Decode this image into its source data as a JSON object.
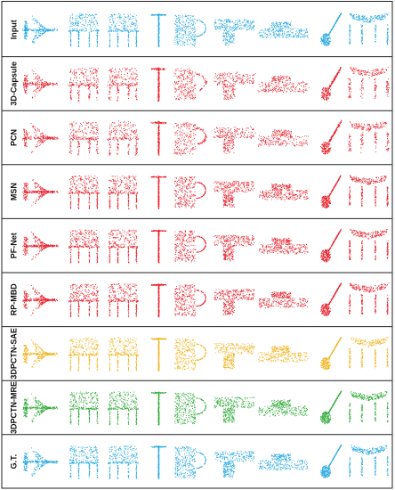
{
  "figure": {
    "rows": [
      {
        "label": "Input",
        "color": "#29a9e0"
      },
      {
        "label": "3D-Capsule",
        "color": "#e8202a"
      },
      {
        "label": "PCN",
        "color": "#e8202a"
      },
      {
        "label": "MSN",
        "color": "#e8202a"
      },
      {
        "label": "PF-Net",
        "color": "#e8202a"
      },
      {
        "label": "RP-MBD",
        "color": "#e8202a"
      },
      {
        "label": "3DPCTN-SAE",
        "color": "#f2b21d"
      },
      {
        "label": "3DPCTN-MRE",
        "color": "#2faa38"
      },
      {
        "label": "G.T.",
        "color": "#29a9e0"
      }
    ],
    "columns": [
      {
        "object": "airplane-icon"
      },
      {
        "object": "chair-icon"
      },
      {
        "object": "chair-icon"
      },
      {
        "object": "lamp-icon"
      },
      {
        "object": "mug-icon"
      },
      {
        "object": "pistol-icon"
      },
      {
        "object": "car-icon"
      },
      {
        "object": "guitar-icon"
      },
      {
        "object": "table-icon"
      }
    ]
  }
}
